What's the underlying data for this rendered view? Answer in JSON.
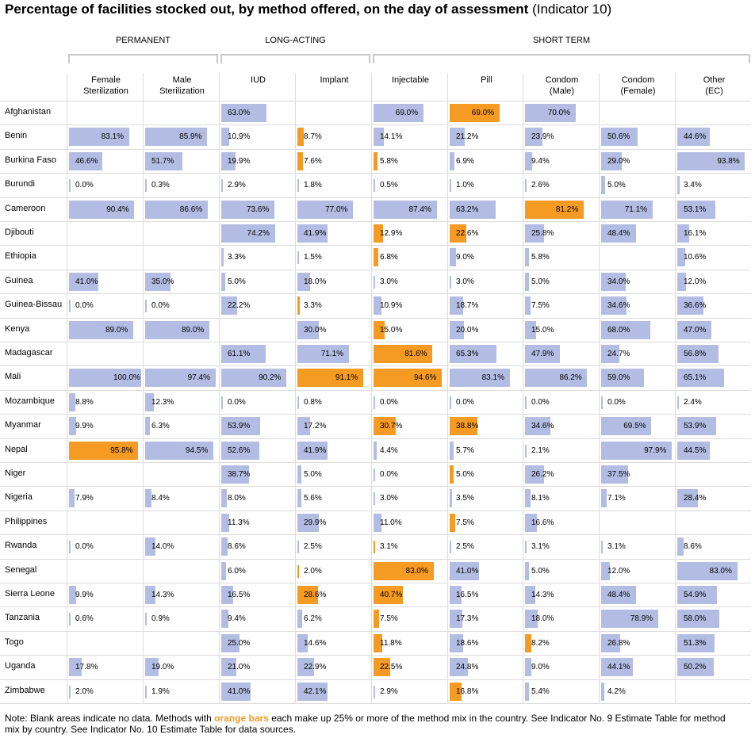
{
  "title": {
    "main": "Percentage of facilities stocked out, by method offered, on the day of assessment",
    "sub": "(Indicator 10)"
  },
  "groups": [
    {
      "label": "PERMANENT"
    },
    {
      "label": "LONG-ACTING"
    },
    {
      "label": "SHORT TERM"
    }
  ],
  "note": {
    "before": "Note: Blank areas indicate no data. Methods with ",
    "highlight": "orange bars",
    "after": " each make up 25% or more of the method mix in the country. See Indicator No. 9 Estimate Table for method mix by country. See Indicator No. 10 Estimate Table for data sources."
  },
  "colors": {
    "bar": "#b3bde3",
    "highlight": "#f59a23",
    "grid": "#dcdcdc"
  },
  "chart_data": {
    "type": "bar",
    "title": "Percentage of facilities stocked out, by method offered, on the day of assessment (Indicator 10)",
    "value_format": "percent",
    "ylim": [
      0,
      100
    ],
    "methods": [
      {
        "label_lines": [
          "Female",
          "Sterilization"
        ],
        "group": "PERMANENT"
      },
      {
        "label_lines": [
          "Male",
          "Sterilization"
        ],
        "group": "PERMANENT"
      },
      {
        "label_lines": [
          "IUD"
        ],
        "group": "LONG-ACTING"
      },
      {
        "label_lines": [
          "Implant"
        ],
        "group": "LONG-ACTING"
      },
      {
        "label_lines": [
          "Injectable"
        ],
        "group": "SHORT TERM"
      },
      {
        "label_lines": [
          "Pill"
        ],
        "group": "SHORT TERM"
      },
      {
        "label_lines": [
          "Condom",
          "(Male)"
        ],
        "group": "SHORT TERM"
      },
      {
        "label_lines": [
          "Condom",
          "(Female)"
        ],
        "group": "SHORT TERM"
      },
      {
        "label_lines": [
          "Other",
          "(EC)"
        ],
        "group": "SHORT TERM"
      }
    ],
    "rows": [
      {
        "country": "Afghanistan",
        "values": [
          null,
          null,
          63.0,
          null,
          69.0,
          69.0,
          70.0,
          null,
          null
        ],
        "highlight": [
          false,
          false,
          false,
          false,
          false,
          true,
          false,
          false,
          false
        ]
      },
      {
        "country": "Benin",
        "values": [
          83.1,
          85.9,
          10.9,
          8.7,
          14.1,
          21.2,
          23.9,
          50.6,
          44.6
        ],
        "highlight": [
          false,
          false,
          false,
          true,
          false,
          false,
          false,
          false,
          false
        ]
      },
      {
        "country": "Burkina Faso",
        "values": [
          46.6,
          51.7,
          19.9,
          7.6,
          5.8,
          6.9,
          9.4,
          29.0,
          93.8
        ],
        "highlight": [
          false,
          false,
          false,
          true,
          true,
          false,
          false,
          false,
          false
        ]
      },
      {
        "country": "Burundi",
        "values": [
          0.0,
          0.3,
          2.9,
          1.8,
          0.5,
          1.0,
          2.6,
          5.0,
          3.4
        ],
        "highlight": [
          false,
          false,
          false,
          false,
          false,
          false,
          false,
          false,
          false
        ]
      },
      {
        "country": "Cameroon",
        "values": [
          90.4,
          86.6,
          73.6,
          77.0,
          87.4,
          63.2,
          81.2,
          71.1,
          53.1
        ],
        "highlight": [
          false,
          false,
          false,
          false,
          false,
          false,
          true,
          false,
          false
        ]
      },
      {
        "country": "Djibouti",
        "values": [
          null,
          null,
          74.2,
          41.9,
          12.9,
          22.6,
          25.8,
          48.4,
          16.1
        ],
        "highlight": [
          false,
          false,
          false,
          false,
          true,
          true,
          false,
          false,
          false
        ]
      },
      {
        "country": "Ethiopia",
        "values": [
          null,
          null,
          3.3,
          1.5,
          6.8,
          9.0,
          5.8,
          null,
          10.6
        ],
        "highlight": [
          false,
          false,
          false,
          false,
          true,
          false,
          false,
          false,
          false
        ]
      },
      {
        "country": "Guinea",
        "values": [
          41.0,
          35.0,
          5.0,
          18.0,
          3.0,
          3.0,
          5.0,
          34.0,
          12.0
        ],
        "highlight": [
          false,
          false,
          false,
          false,
          false,
          false,
          false,
          false,
          false
        ]
      },
      {
        "country": "Guinea-Bissau",
        "values": [
          0.0,
          0.0,
          22.2,
          3.3,
          10.9,
          18.7,
          7.5,
          34.6,
          36.6
        ],
        "highlight": [
          false,
          false,
          false,
          true,
          false,
          false,
          false,
          false,
          false
        ]
      },
      {
        "country": "Kenya",
        "values": [
          89.0,
          89.0,
          null,
          30.0,
          15.0,
          20.0,
          15.0,
          68.0,
          47.0
        ],
        "highlight": [
          false,
          false,
          false,
          false,
          true,
          false,
          false,
          false,
          false
        ]
      },
      {
        "country": "Madagascar",
        "values": [
          null,
          null,
          61.1,
          71.1,
          81.6,
          65.3,
          47.9,
          24.7,
          56.8
        ],
        "highlight": [
          false,
          false,
          false,
          false,
          true,
          false,
          false,
          false,
          false
        ]
      },
      {
        "country": "Mali",
        "values": [
          100.0,
          97.4,
          90.2,
          91.1,
          94.6,
          83.1,
          86.2,
          59.0,
          65.1
        ],
        "highlight": [
          false,
          false,
          false,
          true,
          true,
          false,
          false,
          false,
          false
        ]
      },
      {
        "country": "Mozambique",
        "values": [
          8.8,
          12.3,
          0.0,
          0.8,
          0.0,
          0.0,
          0.0,
          0.0,
          2.4
        ],
        "highlight": [
          false,
          false,
          false,
          false,
          false,
          false,
          false,
          false,
          false
        ]
      },
      {
        "country": "Myanmar",
        "values": [
          9.9,
          6.3,
          53.9,
          17.2,
          30.7,
          38.8,
          34.6,
          69.5,
          53.9
        ],
        "highlight": [
          false,
          false,
          false,
          false,
          true,
          true,
          false,
          false,
          false
        ]
      },
      {
        "country": "Nepal",
        "values": [
          95.8,
          94.5,
          52.6,
          41.9,
          4.4,
          5.7,
          2.1,
          97.9,
          44.5
        ],
        "highlight": [
          true,
          false,
          false,
          false,
          false,
          false,
          false,
          false,
          false
        ]
      },
      {
        "country": "Niger",
        "values": [
          null,
          null,
          38.7,
          5.0,
          0.0,
          5.0,
          26.2,
          37.5,
          null
        ],
        "highlight": [
          false,
          false,
          false,
          false,
          false,
          true,
          false,
          false,
          false
        ]
      },
      {
        "country": "Nigeria",
        "values": [
          7.9,
          8.4,
          8.0,
          5.6,
          3.0,
          3.5,
          8.1,
          7.1,
          28.4
        ],
        "highlight": [
          false,
          false,
          false,
          false,
          false,
          false,
          false,
          false,
          false
        ]
      },
      {
        "country": "Philippines",
        "values": [
          null,
          null,
          11.3,
          29.9,
          11.0,
          7.5,
          16.6,
          null,
          null
        ],
        "highlight": [
          false,
          false,
          false,
          false,
          false,
          true,
          false,
          false,
          false
        ]
      },
      {
        "country": "Rwanda",
        "values": [
          0.0,
          14.0,
          8.6,
          2.5,
          3.1,
          2.5,
          3.1,
          3.1,
          8.6
        ],
        "highlight": [
          false,
          false,
          false,
          false,
          true,
          false,
          false,
          false,
          false
        ]
      },
      {
        "country": "Senegal",
        "values": [
          null,
          null,
          6.0,
          2.0,
          83.0,
          41.0,
          5.0,
          12.0,
          83.0
        ],
        "highlight": [
          false,
          false,
          false,
          true,
          true,
          false,
          false,
          false,
          false
        ]
      },
      {
        "country": "Sierra Leone",
        "values": [
          9.9,
          14.3,
          16.5,
          28.6,
          40.7,
          16.5,
          14.3,
          48.4,
          54.9
        ],
        "highlight": [
          false,
          false,
          false,
          true,
          true,
          false,
          false,
          false,
          false
        ]
      },
      {
        "country": "Tanzania",
        "values": [
          0.6,
          0.9,
          9.4,
          6.2,
          7.5,
          17.3,
          18.0,
          78.9,
          58.0
        ],
        "highlight": [
          false,
          false,
          false,
          false,
          true,
          false,
          false,
          false,
          false
        ]
      },
      {
        "country": "Togo",
        "values": [
          null,
          null,
          25.0,
          14.6,
          11.8,
          18.6,
          8.2,
          26.8,
          51.3
        ],
        "highlight": [
          false,
          false,
          false,
          false,
          true,
          false,
          true,
          false,
          false
        ]
      },
      {
        "country": "Uganda",
        "values": [
          17.8,
          19.0,
          21.0,
          22.9,
          22.5,
          24.8,
          9.0,
          44.1,
          50.2
        ],
        "highlight": [
          false,
          false,
          false,
          false,
          true,
          false,
          false,
          false,
          false
        ]
      },
      {
        "country": "Zimbabwe",
        "values": [
          2.0,
          1.9,
          41.0,
          42.1,
          2.9,
          16.8,
          5.4,
          4.2,
          null
        ],
        "highlight": [
          false,
          false,
          false,
          false,
          false,
          true,
          false,
          false,
          false
        ]
      }
    ]
  }
}
